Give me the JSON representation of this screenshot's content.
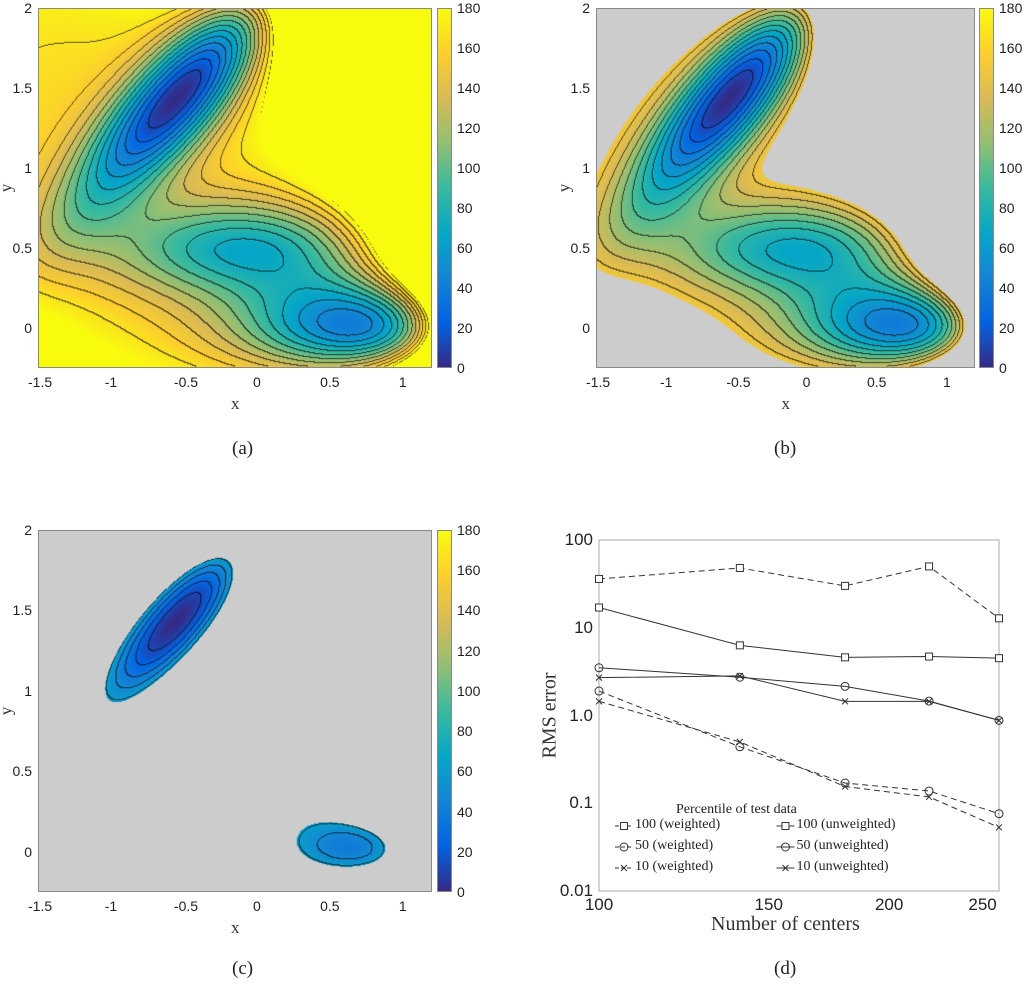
{
  "chart_data": [
    {
      "type": "heatmap",
      "panel": "(a)",
      "xlabel": "x",
      "ylabel": "y",
      "xlim": [
        -1.5,
        1.2
      ],
      "ylim": [
        -0.25,
        2
      ],
      "zlim": [
        0,
        180
      ],
      "xticks": [
        "-1.5",
        "-1",
        "-0.5",
        "0",
        "0.5",
        "1"
      ],
      "yticks": [
        "0",
        "0.5",
        "1",
        "1.5",
        "2"
      ],
      "colorbar_ticks": [
        "0",
        "20",
        "40",
        "60",
        "80",
        "100",
        "120",
        "140",
        "160",
        "180"
      ],
      "colormap": "parula",
      "masked": false
    },
    {
      "type": "heatmap",
      "panel": "(b)",
      "xlabel": "x",
      "ylabel": "y",
      "xlim": [
        -1.5,
        1.2
      ],
      "ylim": [
        -0.25,
        2
      ],
      "zlim": [
        0,
        180
      ],
      "xticks": [
        "-1.5",
        "-1",
        "-0.5",
        "0",
        "0.5",
        "1"
      ],
      "yticks": [
        "0",
        "0.5",
        "1",
        "1.5",
        "2"
      ],
      "colorbar_ticks": [
        "0",
        "20",
        "40",
        "60",
        "80",
        "100",
        "120",
        "140",
        "160",
        "180"
      ],
      "colormap": "parula",
      "masked": true,
      "mask_color": "#cccccc"
    },
    {
      "type": "heatmap",
      "panel": "(c)",
      "xlabel": "x",
      "ylabel": "y",
      "xlim": [
        -1.5,
        1.2
      ],
      "ylim": [
        -0.25,
        2
      ],
      "zlim": [
        0,
        180
      ],
      "xticks": [
        "-1.5",
        "-1",
        "-0.5",
        "0",
        "0.5",
        "1"
      ],
      "yticks": [
        "0",
        "0.5",
        "1",
        "1.5",
        "2"
      ],
      "colorbar_ticks": [
        "0",
        "20",
        "40",
        "60",
        "80",
        "100",
        "120",
        "140",
        "160",
        "180"
      ],
      "colormap": "parula",
      "masked": true,
      "mask_color": "#cccccc"
    },
    {
      "type": "line",
      "panel": "(d)",
      "xlabel": "Number of centers",
      "ylabel": "RMS error",
      "xscale": "log",
      "yscale": "log",
      "xlim": [
        100,
        260
      ],
      "ylim": [
        0.01,
        100
      ],
      "xticks": [
        "100",
        "150",
        "200",
        "250"
      ],
      "yticks": [
        "0.01",
        "0.1",
        "1.0",
        "10",
        "100"
      ],
      "legend_title": "Percentile of test data",
      "legend_position": "bottom-left",
      "x": [
        100,
        140,
        180,
        220,
        260
      ],
      "series": [
        {
          "name": "100 (weighted)",
          "marker": "square",
          "dash": true,
          "values": [
            36,
            48,
            30,
            50,
            12.8
          ]
        },
        {
          "name": "100 (unweighted)",
          "marker": "square",
          "dash": false,
          "values": [
            17,
            6.3,
            4.6,
            4.7,
            4.5
          ]
        },
        {
          "name": "50 (weighted)",
          "marker": "circle",
          "dash": true,
          "values": [
            1.9,
            0.44,
            0.17,
            0.138,
            0.076
          ]
        },
        {
          "name": "50 (unweighted)",
          "marker": "circle",
          "dash": false,
          "values": [
            3.5,
            2.73,
            2.15,
            1.46,
            0.88
          ]
        },
        {
          "name": "10 (weighted)",
          "marker": "x",
          "dash": true,
          "values": [
            1.45,
            0.5,
            0.155,
            0.118,
            0.053
          ]
        },
        {
          "name": "10 (unweighted)",
          "marker": "x",
          "dash": false,
          "values": [
            2.7,
            2.83,
            1.45,
            1.45,
            0.88
          ]
        }
      ]
    }
  ],
  "captions": [
    "(a)",
    "(b)",
    "(c)",
    "(d)"
  ]
}
